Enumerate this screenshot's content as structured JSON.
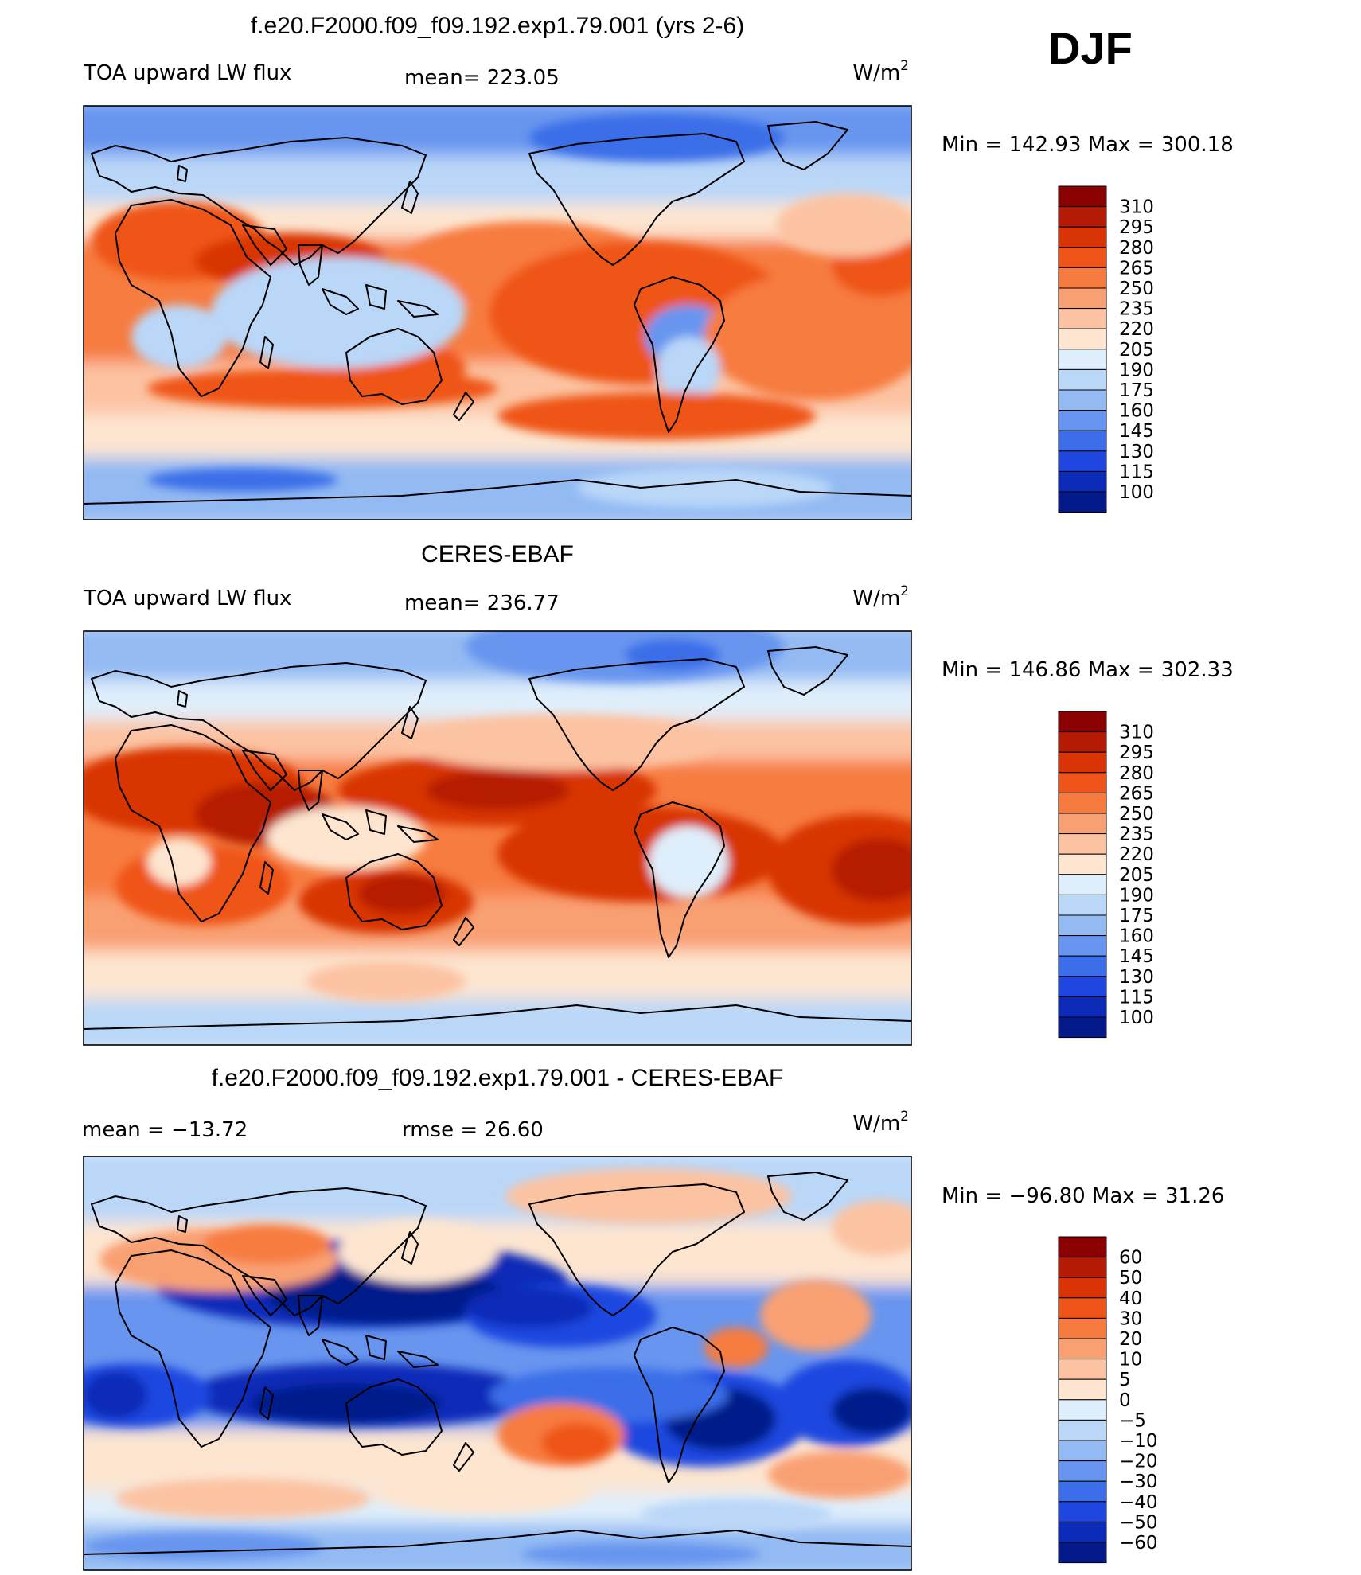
{
  "season": "DJF",
  "chart_data": [
    {
      "type": "heatmap",
      "title": "f.e20.F2000.f09_f09.192.exp1.79.001 (yrs 2-6)",
      "left_label": "TOA upward LW flux",
      "center_label": "mean= 223.05",
      "units_base": "W/m",
      "units_exp": "2",
      "min_max": "Min = 142.93 Max = 300.18",
      "levels": [
        "310",
        "295",
        "280",
        "265",
        "250",
        "235",
        "220",
        "205",
        "190",
        "175",
        "160",
        "145",
        "130",
        "115",
        "100"
      ],
      "colors": [
        "#8b0000",
        "#b51a04",
        "#d83406",
        "#ef5418",
        "#f77b3f",
        "#f9a073",
        "#fcc3a2",
        "#fde5d0",
        "#dfeefb",
        "#bad7f8",
        "#93baf3",
        "#6795ef",
        "#3b6ee8",
        "#1f47e0",
        "#0c2ab8",
        "#051a8a"
      ],
      "colorbar_labels": [
        310,
        295,
        280,
        265,
        250,
        235,
        220,
        205,
        190,
        175,
        160,
        145,
        130,
        115,
        100
      ]
    },
    {
      "type": "heatmap",
      "title": "CERES-EBAF",
      "left_label": "TOA upward LW flux",
      "center_label": "mean= 236.77",
      "units_base": "W/m",
      "units_exp": "2",
      "min_max": "Min = 146.86 Max = 302.33",
      "levels": [
        "310",
        "295",
        "280",
        "265",
        "250",
        "235",
        "220",
        "205",
        "190",
        "175",
        "160",
        "145",
        "130",
        "115",
        "100"
      ],
      "colors": [
        "#8b0000",
        "#b51a04",
        "#d83406",
        "#ef5418",
        "#f77b3f",
        "#f9a073",
        "#fcc3a2",
        "#fde5d0",
        "#dfeefb",
        "#bad7f8",
        "#93baf3",
        "#6795ef",
        "#3b6ee8",
        "#1f47e0",
        "#0c2ab8",
        "#051a8a"
      ],
      "colorbar_labels": [
        310,
        295,
        280,
        265,
        250,
        235,
        220,
        205,
        190,
        175,
        160,
        145,
        130,
        115,
        100
      ]
    },
    {
      "type": "heatmap",
      "title": "f.e20.F2000.f09_f09.192.exp1.79.001 - CERES-EBAF",
      "left_label": "mean = −13.72",
      "center_label": "rmse = 26.60",
      "units_base": "W/m",
      "units_exp": "2",
      "min_max": "Min = −96.80 Max = 31.26",
      "levels": [
        "60",
        "50",
        "40",
        "30",
        "20",
        "10",
        "5",
        "0",
        "−5",
        "−10",
        "−20",
        "−30",
        "−40",
        "−50",
        "−60"
      ],
      "colors": [
        "#8b0000",
        "#b51a04",
        "#d83406",
        "#ef5418",
        "#f77b3f",
        "#f9a073",
        "#fcc3a2",
        "#fde5d0",
        "#dfeefb",
        "#bad7f8",
        "#93baf3",
        "#6795ef",
        "#3b6ee8",
        "#1f47e0",
        "#0c2ab8",
        "#051a8a"
      ],
      "colorbar_labels": [
        "60",
        "50",
        "40",
        "30",
        "20",
        "10",
        "5",
        "0",
        "−5",
        "−10",
        "−20",
        "−30",
        "−40",
        "−50",
        "−60"
      ]
    }
  ]
}
